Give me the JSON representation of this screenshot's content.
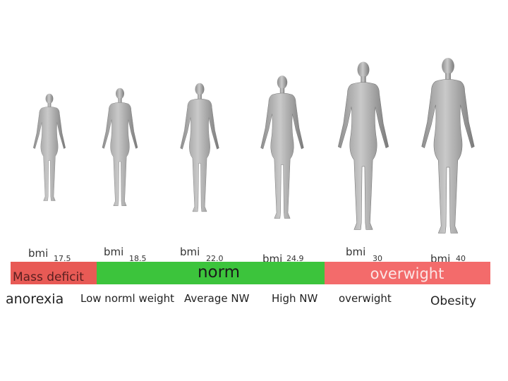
{
  "figures": [
    {
      "label": "bmi",
      "value": "17.5"
    },
    {
      "label": "bmi",
      "value": "18.5"
    },
    {
      "label": "bmi",
      "value": "22.0"
    },
    {
      "label": "bmi",
      "value": "24.9"
    },
    {
      "label": "bmi",
      "value": "30"
    },
    {
      "label": "bmi",
      "value": "40"
    }
  ],
  "bands": [
    "Mass deficit",
    "norm",
    "overwight"
  ],
  "categories": [
    "anorexia",
    "Low norml weight",
    "Average NW",
    "High NW",
    "overwight",
    "Obesity"
  ]
}
